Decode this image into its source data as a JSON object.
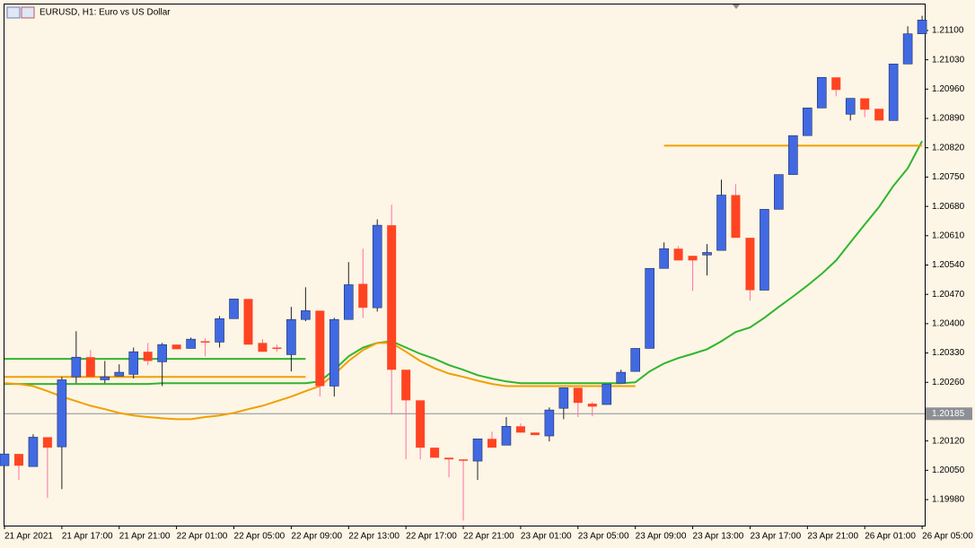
{
  "chart_data": {
    "type": "candlestick",
    "title": "EURUSD, H1:  Euro vs US Dollar",
    "categories": [
      "21 Apr 2021",
      null,
      null,
      null,
      "21 Apr 17:00",
      null,
      null,
      null,
      "21 Apr 21:00",
      null,
      null,
      null,
      "22 Apr 01:00",
      null,
      null,
      null,
      "22 Apr 05:00",
      null,
      null,
      null,
      "22 Apr 09:00",
      null,
      null,
      null,
      "22 Apr 13:00",
      null,
      null,
      null,
      "22 Apr 17:00",
      null,
      null,
      null,
      "22 Apr 21:00",
      null,
      null,
      null,
      "23 Apr 01:00",
      null,
      null,
      null,
      "23 Apr 05:00",
      null,
      null,
      null,
      "23 Apr 09:00",
      null,
      null,
      null,
      "23 Apr 13:00",
      null,
      null,
      null,
      "23 Apr 17:00",
      null,
      null,
      null,
      "23 Apr 21:00",
      null,
      null,
      null,
      "26 Apr 01:00",
      null,
      null,
      null,
      "26 Apr 05:00"
    ],
    "open": [
      1.20061,
      1.20089,
      1.20059,
      1.20129,
      1.20106,
      1.20273,
      1.2032,
      1.20266,
      1.20275,
      1.20279,
      1.20333,
      1.20309,
      1.2035,
      1.20341,
      1.20358,
      1.20356,
      1.20412,
      1.20459,
      1.20354,
      1.20343,
      1.20326,
      1.2041,
      1.20431,
      1.20251,
      1.2041,
      1.20495,
      1.20438,
      1.20635,
      1.2029,
      1.20217,
      1.20104,
      1.2008,
      1.20076,
      1.20072,
      1.20125,
      1.2011,
      1.20155,
      1.2014,
      1.20132,
      1.20198,
      1.20247,
      1.20209,
      1.20207,
      1.20258,
      1.20286,
      1.20341,
      1.20532,
      1.20579,
      1.20562,
      1.20564,
      1.20575,
      1.20707,
      1.20605,
      1.2048,
      1.20673,
      1.20756,
      1.20849,
      1.20915,
      1.20988,
      1.209,
      1.20938,
      1.20913,
      1.20885,
      1.2102,
      1.21092
    ],
    "high": [
      1.20089,
      1.20089,
      1.20136,
      1.20129,
      1.20273,
      1.20382,
      1.20337,
      1.20311,
      1.20303,
      1.20343,
      1.20354,
      1.20354,
      1.2035,
      1.20367,
      1.20365,
      1.20418,
      1.20459,
      1.20459,
      1.20363,
      1.2035,
      1.2044,
      1.20487,
      1.20431,
      1.20414,
      1.20547,
      1.20579,
      1.20649,
      1.20684,
      1.2029,
      1.20217,
      1.20104,
      1.2008,
      1.20076,
      1.20125,
      1.20142,
      1.20177,
      1.20162,
      1.2014,
      1.202,
      1.20247,
      1.20247,
      1.20213,
      1.20256,
      1.2029,
      1.20341,
      1.20532,
      1.20594,
      1.20585,
      1.20562,
      1.2059,
      1.20744,
      1.20733,
      1.20605,
      1.20673,
      1.20756,
      1.20849,
      1.20915,
      1.20988,
      1.20988,
      1.20938,
      1.20938,
      1.20913,
      1.2102,
      1.2111,
      1.21135
    ],
    "low": [
      1.20061,
      1.20027,
      1.20059,
      1.19984,
      1.20005,
      1.20258,
      1.20273,
      1.20258,
      1.20275,
      1.20269,
      1.20301,
      1.20251,
      1.20339,
      1.20341,
      1.20322,
      1.20343,
      1.20412,
      1.2035,
      1.20333,
      1.20333,
      1.20286,
      1.20406,
      1.20226,
      1.20226,
      1.2041,
      1.20414,
      1.20429,
      1.20183,
      1.20076,
      1.20076,
      1.2008,
      1.20033,
      1.1993,
      1.20027,
      1.20104,
      1.2011,
      1.2014,
      1.20134,
      1.20119,
      1.20172,
      1.20177,
      1.20179,
      1.20207,
      1.20258,
      1.20286,
      1.20341,
      1.20532,
      1.20551,
      1.20478,
      1.20515,
      1.20575,
      1.20605,
      1.20455,
      1.2048,
      1.20673,
      1.20756,
      1.20849,
      1.20915,
      1.20943,
      1.20885,
      1.20893,
      1.20885,
      1.20885,
      1.2102,
      1.21092
    ],
    "close": [
      1.20089,
      1.20061,
      1.20129,
      1.20104,
      1.20266,
      1.2032,
      1.20273,
      1.20273,
      1.20284,
      1.20333,
      1.20311,
      1.2035,
      1.20339,
      1.20363,
      1.20356,
      1.20412,
      1.20459,
      1.2035,
      1.20333,
      1.20341,
      1.2041,
      1.20431,
      1.20251,
      1.2041,
      1.20493,
      1.20438,
      1.20635,
      1.2029,
      1.20217,
      1.20104,
      1.2008,
      1.20076,
      1.20074,
      1.20125,
      1.20104,
      1.20155,
      1.2014,
      1.20134,
      1.20194,
      1.20247,
      1.20211,
      1.20202,
      1.20256,
      1.20284,
      1.20341,
      1.20532,
      1.20579,
      1.20551,
      1.20551,
      1.2057,
      1.20707,
      1.20605,
      1.2048,
      1.20673,
      1.20756,
      1.20849,
      1.20915,
      1.20988,
      1.20958,
      1.20938,
      1.20911,
      1.20885,
      1.2102,
      1.21092,
      1.21125
    ],
    "up_color": "#4169e1",
    "down_color": "#ff4422",
    "up_wick_color": "#222222",
    "down_wick_color": "#ff6fa8",
    "lines": [
      {
        "color": "#2fb52f",
        "values": [
          1.20256,
          1.20256,
          1.20256,
          1.20256,
          1.20256,
          1.20256,
          1.20256,
          1.20256,
          1.20256,
          1.20256,
          1.20256,
          1.20258,
          1.20258,
          1.20258,
          1.20258,
          1.20258,
          1.20258,
          1.20258,
          1.20258,
          1.20258,
          1.20258,
          1.20258,
          1.20262,
          1.2029,
          1.20322,
          1.20343,
          1.20354,
          1.20358,
          1.20343,
          1.20328,
          1.20316,
          1.20301,
          1.2029,
          1.20277,
          1.20269,
          1.20262,
          1.20258,
          1.20258,
          1.20258,
          1.20258,
          1.20258,
          1.20258,
          1.20258,
          1.20258,
          1.2026,
          1.20286,
          1.20305,
          1.20318,
          1.20328,
          1.20339,
          1.20358,
          1.2038,
          1.20391,
          1.20414,
          1.2044,
          1.20465,
          1.20491,
          1.20519,
          1.20551,
          1.20594,
          1.20637,
          1.20679,
          1.20729,
          1.20771,
          1.20836
        ]
      },
      {
        "color": "#f0a000",
        "values": [
          1.20258,
          1.20256,
          1.20251,
          1.20239,
          1.20226,
          1.20215,
          1.20204,
          1.20196,
          1.20187,
          1.20181,
          1.20177,
          1.20174,
          1.20172,
          1.20172,
          1.20177,
          1.20181,
          1.20187,
          1.20196,
          1.20204,
          1.20215,
          1.20226,
          1.20239,
          1.20251,
          1.20279,
          1.20311,
          1.20337,
          1.20354,
          1.20354,
          1.20333,
          1.20311,
          1.20294,
          1.20281,
          1.20273,
          1.20264,
          1.20256,
          1.20251,
          1.20251,
          1.20251,
          1.20251,
          1.20251,
          1.20251,
          1.20251,
          1.20251,
          1.20251,
          1.20251,
          null,
          null,
          null,
          null,
          null,
          null,
          null,
          null,
          null,
          null,
          null,
          null,
          null,
          null,
          null,
          null,
          null,
          null,
          null,
          null
        ]
      },
      {
        "color": "#f0a000",
        "values": [
          null,
          null,
          null,
          null,
          null,
          null,
          null,
          null,
          null,
          null,
          null,
          null,
          null,
          null,
          null,
          null,
          null,
          null,
          null,
          null,
          null,
          null,
          null,
          null,
          null,
          null,
          null,
          null,
          null,
          null,
          null,
          null,
          null,
          null,
          null,
          null,
          null,
          null,
          null,
          null,
          null,
          null,
          null,
          null,
          null,
          null,
          1.20825,
          1.20825,
          1.20825,
          1.20825,
          1.20825,
          1.20825,
          1.20825,
          1.20825,
          1.20825,
          1.20825,
          1.20825,
          1.20825,
          1.20825,
          1.20825,
          1.20825,
          1.20825,
          1.20825,
          1.20825,
          1.20825
        ]
      },
      {
        "color": "#2fb52f",
        "values": [
          1.20316,
          1.20316,
          1.20316,
          1.20316,
          1.20316,
          1.20316,
          1.20316,
          1.20316,
          1.20316,
          1.20316,
          1.20316,
          1.20316,
          1.20316,
          1.20316,
          1.20316,
          1.20316,
          1.20316,
          1.20316,
          1.20316,
          1.20316,
          1.20316,
          1.20316,
          null,
          null,
          null,
          null,
          null,
          null,
          null,
          null,
          null,
          null,
          null,
          null,
          null,
          null,
          null,
          null,
          null,
          null,
          null,
          null,
          null,
          null,
          null,
          null,
          null,
          null,
          null,
          null,
          null,
          null,
          null,
          null,
          null,
          null,
          null,
          null,
          null,
          null,
          null,
          null,
          null,
          null,
          null
        ]
      },
      {
        "color": "#f0a000",
        "values": [
          1.20273,
          1.20273,
          1.20273,
          1.20273,
          1.20273,
          1.20273,
          1.20273,
          1.20273,
          1.20273,
          1.20273,
          1.20273,
          1.20273,
          1.20273,
          1.20273,
          1.20273,
          1.20273,
          1.20273,
          1.20273,
          1.20273,
          1.20273,
          1.20273,
          1.20273,
          null,
          null,
          null,
          null,
          null,
          null,
          null,
          null,
          null,
          null,
          null,
          null,
          null,
          null,
          null,
          null,
          null,
          null,
          null,
          null,
          null,
          null,
          null,
          null,
          null,
          null,
          null,
          null,
          null,
          null,
          null,
          null,
          null,
          null,
          null,
          null,
          null,
          null,
          null,
          null,
          null,
          null,
          null
        ]
      }
    ],
    "current_price": 1.20185,
    "ylim": [
      1.19918,
      1.21162
    ],
    "yticks": [
      {
        "value": 1.211,
        "label": "1.21100"
      },
      {
        "value": 1.2103,
        "label": "1.21030"
      },
      {
        "value": 1.2096,
        "label": "1.20960"
      },
      {
        "value": 1.2089,
        "label": "1.20890"
      },
      {
        "value": 1.2082,
        "label": "1.20820"
      },
      {
        "value": 1.2075,
        "label": "1.20750"
      },
      {
        "value": 1.2068,
        "label": "1.20680"
      },
      {
        "value": 1.2061,
        "label": "1.20610"
      },
      {
        "value": 1.2054,
        "label": "1.20540"
      },
      {
        "value": 1.2047,
        "label": "1.20470"
      },
      {
        "value": 1.204,
        "label": "1.20400"
      },
      {
        "value": 1.2033,
        "label": "1.20330"
      },
      {
        "value": 1.2026,
        "label": "1.20260"
      },
      {
        "value": 1.2012,
        "label": "1.20120"
      },
      {
        "value": 1.2005,
        "label": "1.20050"
      },
      {
        "value": 1.1998,
        "label": "1.19980"
      }
    ]
  }
}
